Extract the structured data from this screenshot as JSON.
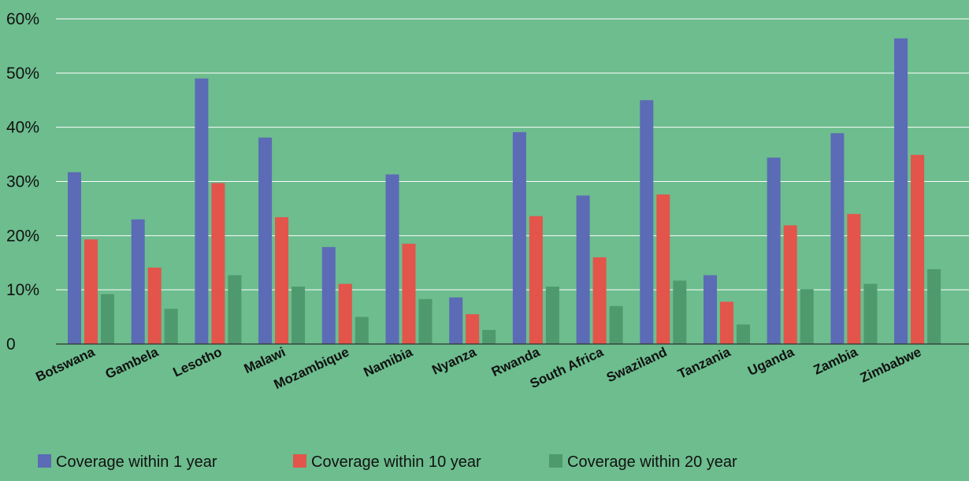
{
  "chart_data": {
    "type": "bar",
    "categories": [
      "Botswana",
      "Gambela",
      "Lesotho",
      "Malawi",
      "Mozambique",
      "Namibia",
      "Nyanza",
      "Rwanda",
      "South Africa",
      "Swaziland",
      "Tanzania",
      "Uganda",
      "Zambia",
      "Zimbabwe"
    ],
    "series": [
      {
        "name": "Coverage within 1 year",
        "color": "#5b6bb5",
        "values": [
          31.7,
          23.0,
          49.0,
          38.1,
          17.9,
          31.3,
          8.6,
          39.1,
          27.4,
          45.0,
          12.7,
          34.4,
          38.9,
          56.4
        ]
      },
      {
        "name": "Coverage within 10 year",
        "color": "#e3544b",
        "values": [
          19.3,
          14.1,
          29.7,
          23.4,
          11.1,
          18.5,
          5.5,
          23.6,
          16.0,
          27.6,
          7.8,
          21.9,
          24.0,
          34.9
        ]
      },
      {
        "name": "Coverage within 20 year",
        "color": "#4e9a6e",
        "values": [
          9.2,
          6.5,
          12.7,
          10.6,
          5.0,
          8.3,
          2.6,
          10.6,
          7.0,
          11.7,
          3.6,
          10.1,
          11.1,
          13.8
        ]
      }
    ],
    "yticks": [
      "0",
      "10%",
      "20%",
      "30%",
      "40%",
      "50%",
      "60%"
    ],
    "ylim": [
      0,
      60
    ],
    "grid": true,
    "legend_position": "bottom",
    "background": "#6dbd8e",
    "title": "",
    "xlabel": "",
    "ylabel": ""
  }
}
